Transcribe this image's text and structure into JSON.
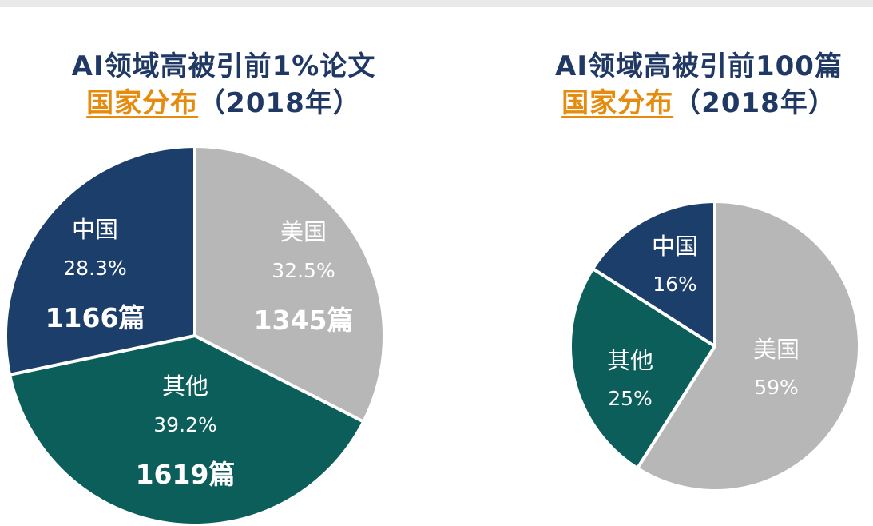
{
  "chart_data": [
    {
      "type": "pie",
      "title_line1": "AI领域高被引前1%论文",
      "title_highlight": "国家分布",
      "title_suffix": "（2018年）",
      "slices": [
        {
          "name": "美国",
          "value": 32.5,
          "pct_label": "32.5%",
          "count_label": "1345篇",
          "color": "#b7b7b7"
        },
        {
          "name": "其他",
          "value": 39.2,
          "pct_label": "39.2%",
          "count_label": "1619篇",
          "color": "#0b5e5a"
        },
        {
          "name": "中国",
          "value": 28.3,
          "pct_label": "28.3%",
          "count_label": "1166篇",
          "color": "#1c3e6a"
        }
      ]
    },
    {
      "type": "pie",
      "title_line1": "AI领域高被引前100篇",
      "title_highlight": "国家分布",
      "title_suffix": "（2018年）",
      "slices": [
        {
          "name": "美国",
          "value": 59,
          "pct_label": "59%",
          "color": "#b7b7b7"
        },
        {
          "name": "其他",
          "value": 25,
          "pct_label": "25%",
          "color": "#0b5e5a"
        },
        {
          "name": "中国",
          "value": 16,
          "pct_label": "16%",
          "color": "#1c3e6a"
        }
      ]
    }
  ]
}
